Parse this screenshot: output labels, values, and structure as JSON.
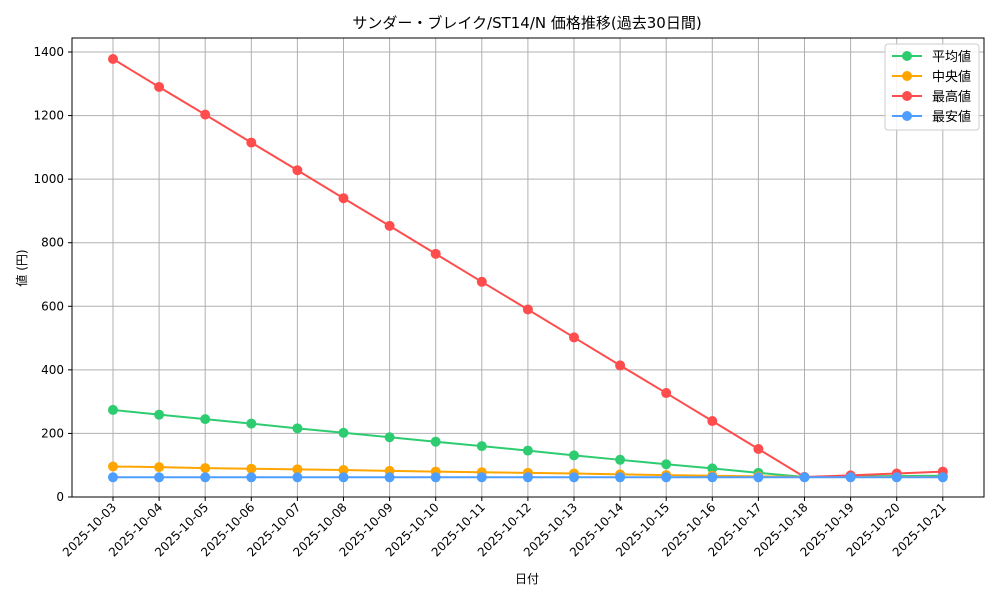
{
  "chart_data": {
    "type": "line",
    "title": "サンダー・ブレイク/ST14/N 価格推移(過去30日間)",
    "xlabel": "日付",
    "ylabel": "値 (円)",
    "ylim": [
      0,
      1450
    ],
    "yticks": [
      0,
      200,
      400,
      600,
      800,
      1000,
      1200,
      1400
    ],
    "grid": true,
    "legend_position": "upper right",
    "categories": [
      "2025-10-03",
      "2025-10-04",
      "2025-10-05",
      "2025-10-06",
      "2025-10-07",
      "2025-10-08",
      "2025-10-09",
      "2025-10-10",
      "2025-10-11",
      "2025-10-12",
      "2025-10-13",
      "2025-10-14",
      "2025-10-15",
      "2025-10-16",
      "2025-10-17",
      "2025-10-18",
      "2025-10-19",
      "2025-10-20",
      "2025-10-21"
    ],
    "series": [
      {
        "name": "平均値",
        "color": "#2ecc71",
        "values": [
          274,
          259,
          245,
          231,
          216,
          202,
          188,
          174,
          160,
          146,
          131,
          117,
          103,
          90,
          76,
          63,
          65,
          66,
          67
        ]
      },
      {
        "name": "中央値",
        "color": "#ffa500",
        "values": [
          96,
          94,
          91,
          89,
          87,
          85,
          82,
          80,
          78,
          76,
          74,
          71,
          69,
          67,
          65,
          63,
          63,
          63,
          63
        ]
      },
      {
        "name": "最高値",
        "color": "#ff4d4d",
        "values": [
          1378,
          1290,
          1203,
          1115,
          1028,
          940,
          853,
          765,
          677,
          590,
          502,
          414,
          327,
          239,
          151,
          63,
          68,
          74,
          80
        ]
      },
      {
        "name": "最安値",
        "color": "#4d9eff",
        "values": [
          62,
          62,
          62,
          62,
          62,
          62,
          62,
          62,
          62,
          62,
          62,
          62,
          62,
          62,
          62,
          62,
          62,
          62,
          62
        ]
      }
    ]
  }
}
